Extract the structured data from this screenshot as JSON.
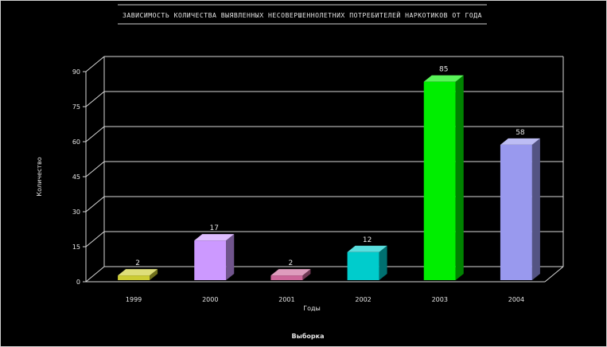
{
  "chart_data": {
    "type": "bar",
    "title": "ЗАВИСИМОСТЬ КОЛИЧЕСТВА ВЫЯВЛЕННЫХ НЕСОВЕРШЕННОЛЕТНИХ ПОТРЕБИТЕЛЕЙ НАРКОТИКОВ ОТ ГОДА",
    "categories": [
      "1999",
      "2000",
      "2001",
      "2002",
      "2003",
      "2004"
    ],
    "values": [
      2,
      17,
      2,
      12,
      85,
      58
    ],
    "value_labels": [
      "2",
      "17",
      "2",
      "12",
      "85",
      "58"
    ],
    "ylim": [
      0,
      90
    ],
    "yticks": [
      "0",
      "15",
      "30",
      "45",
      "60",
      "75",
      "90"
    ],
    "ylabel": "Количество",
    "xlabel": "Годы",
    "footer": "Выборка",
    "grid": true,
    "colors": [
      "#cccc33",
      "#cc99ff",
      "#cc6699",
      "#00cccc",
      "#00ee00",
      "#9999ee"
    ],
    "background": "#000000",
    "text_color": "#e6e6e6"
  }
}
